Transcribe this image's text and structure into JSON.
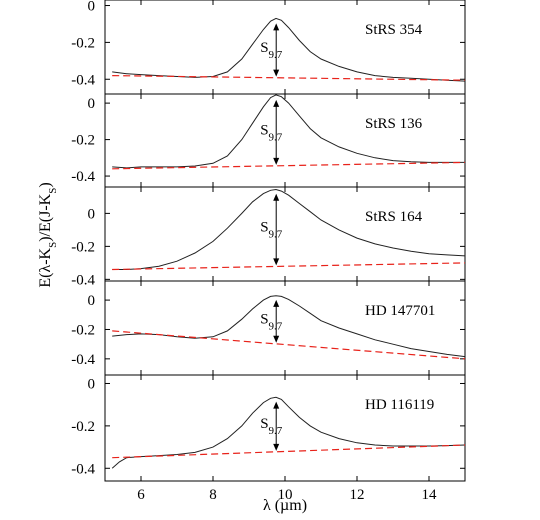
{
  "figure": {
    "ylabel_parts": [
      "E(λ-K",
      "S",
      ")/E(J-K",
      "S",
      ")"
    ],
    "xlabel": "λ (µm)",
    "annotation_main": "S",
    "annotation_sub": "9.7"
  },
  "chart_data": [
    {
      "type": "line",
      "label": "StRS 354",
      "xlim": [
        5,
        15
      ],
      "ylim": [
        -0.48,
        0.03
      ],
      "xticks": [
        6,
        8,
        10,
        12,
        14
      ],
      "yticks": [
        0,
        -0.2,
        -0.4
      ],
      "ytick_labels": [
        "0",
        "-0.2",
        "-0.4"
      ],
      "peak_x": 9.7,
      "series": [
        {
          "role": "observed",
          "style": "solid-black",
          "x": [
            5.2,
            5.6,
            6.0,
            6.5,
            7.0,
            7.5,
            8.0,
            8.4,
            8.8,
            9.1,
            9.4,
            9.6,
            9.75,
            9.9,
            10.1,
            10.4,
            10.7,
            11.0,
            11.5,
            12.0,
            12.5,
            13.0,
            13.5,
            14.0,
            14.5,
            15.0
          ],
          "y": [
            -0.36,
            -0.37,
            -0.375,
            -0.38,
            -0.385,
            -0.39,
            -0.385,
            -0.36,
            -0.29,
            -0.21,
            -0.13,
            -0.085,
            -0.07,
            -0.08,
            -0.12,
            -0.19,
            -0.25,
            -0.29,
            -0.33,
            -0.36,
            -0.38,
            -0.39,
            -0.395,
            -0.4,
            -0.405,
            -0.41
          ]
        },
        {
          "role": "continuum",
          "style": "dashed-red",
          "x": [
            5.2,
            15.0
          ],
          "y": [
            -0.38,
            -0.405
          ]
        }
      ]
    },
    {
      "type": "line",
      "label": "StRS 136",
      "xlim": [
        5,
        15
      ],
      "ylim": [
        -0.46,
        0.05
      ],
      "xticks": [
        6,
        8,
        10,
        12,
        14
      ],
      "yticks": [
        0,
        -0.2,
        -0.4
      ],
      "ytick_labels": [
        "0",
        "-0.2",
        "-0.4"
      ],
      "peak_x": 9.7,
      "series": [
        {
          "role": "observed",
          "style": "solid-black",
          "x": [
            5.2,
            5.6,
            6.0,
            6.5,
            7.0,
            7.5,
            8.0,
            8.4,
            8.8,
            9.1,
            9.4,
            9.6,
            9.75,
            9.9,
            10.1,
            10.4,
            10.7,
            11.0,
            11.5,
            12.0,
            12.5,
            13.0,
            13.5,
            14.0,
            14.5,
            15.0
          ],
          "y": [
            -0.35,
            -0.355,
            -0.35,
            -0.35,
            -0.35,
            -0.345,
            -0.33,
            -0.29,
            -0.2,
            -0.11,
            -0.02,
            0.03,
            0.045,
            0.035,
            0.0,
            -0.07,
            -0.14,
            -0.19,
            -0.24,
            -0.275,
            -0.3,
            -0.315,
            -0.322,
            -0.325,
            -0.325,
            -0.325
          ]
        },
        {
          "role": "continuum",
          "style": "dashed-red",
          "x": [
            5.2,
            15.0
          ],
          "y": [
            -0.36,
            -0.325
          ]
        }
      ]
    },
    {
      "type": "line",
      "label": "StRS 164",
      "xlim": [
        5,
        15
      ],
      "ylim": [
        -0.41,
        0.16
      ],
      "xticks": [
        6,
        8,
        10,
        12,
        14
      ],
      "yticks": [
        0,
        -0.2,
        -0.4
      ],
      "ytick_labels": [
        "0",
        "-0.2",
        "-0.4"
      ],
      "peak_x": 9.7,
      "series": [
        {
          "role": "observed",
          "style": "solid-black",
          "x": [
            5.2,
            5.6,
            6.0,
            6.5,
            7.0,
            7.5,
            8.0,
            8.4,
            8.8,
            9.1,
            9.4,
            9.6,
            9.75,
            9.9,
            10.1,
            10.4,
            10.7,
            11.0,
            11.5,
            12.0,
            12.5,
            13.0,
            13.5,
            14.0,
            14.5,
            15.0
          ],
          "y": [
            -0.34,
            -0.34,
            -0.335,
            -0.32,
            -0.29,
            -0.24,
            -0.17,
            -0.09,
            0.0,
            0.07,
            0.12,
            0.14,
            0.145,
            0.135,
            0.11,
            0.06,
            0.01,
            -0.04,
            -0.1,
            -0.15,
            -0.185,
            -0.21,
            -0.23,
            -0.245,
            -0.252,
            -0.258
          ]
        },
        {
          "role": "continuum",
          "style": "dashed-red",
          "x": [
            5.2,
            15.0
          ],
          "y": [
            -0.34,
            -0.3
          ]
        }
      ]
    },
    {
      "type": "line",
      "label": "HD 147701",
      "xlim": [
        5,
        15
      ],
      "ylim": [
        -0.51,
        0.13
      ],
      "xticks": [
        6,
        8,
        10,
        12,
        14
      ],
      "yticks": [
        0,
        -0.2,
        -0.4
      ],
      "ytick_labels": [
        "0",
        "-0.2",
        "-0.4"
      ],
      "peak_x": 9.7,
      "series": [
        {
          "role": "observed",
          "style": "solid-black",
          "x": [
            5.2,
            5.6,
            6.0,
            6.5,
            7.0,
            7.5,
            8.0,
            8.4,
            8.8,
            9.1,
            9.4,
            9.6,
            9.75,
            9.9,
            10.1,
            10.4,
            10.7,
            11.0,
            11.5,
            12.0,
            12.5,
            13.0,
            13.5,
            14.0,
            14.5,
            15.0
          ],
          "y": [
            -0.245,
            -0.235,
            -0.23,
            -0.235,
            -0.25,
            -0.26,
            -0.25,
            -0.21,
            -0.13,
            -0.06,
            0.0,
            0.025,
            0.03,
            0.025,
            0.005,
            -0.04,
            -0.09,
            -0.14,
            -0.19,
            -0.23,
            -0.27,
            -0.3,
            -0.33,
            -0.35,
            -0.37,
            -0.385
          ]
        },
        {
          "role": "continuum",
          "style": "dashed-red",
          "x": [
            5.2,
            15.0
          ],
          "y": [
            -0.21,
            -0.4
          ]
        }
      ]
    },
    {
      "type": "line",
      "label": "HD 116119",
      "xlim": [
        5,
        15
      ],
      "ylim": [
        -0.46,
        0.04
      ],
      "xticks": [
        6,
        8,
        10,
        12,
        14
      ],
      "yticks": [
        0,
        -0.2,
        -0.4
      ],
      "ytick_labels": [
        "0",
        "-0.2",
        "-0.4"
      ],
      "peak_x": 9.7,
      "series": [
        {
          "role": "observed",
          "style": "solid-black",
          "x": [
            5.2,
            5.4,
            5.6,
            6.0,
            6.5,
            7.0,
            7.5,
            8.0,
            8.4,
            8.8,
            9.1,
            9.4,
            9.6,
            9.75,
            9.9,
            10.1,
            10.4,
            10.7,
            11.0,
            11.5,
            12.0,
            12.5,
            13.0,
            13.5,
            14.0,
            14.5,
            15.0
          ],
          "y": [
            -0.4,
            -0.37,
            -0.35,
            -0.345,
            -0.34,
            -0.335,
            -0.325,
            -0.3,
            -0.26,
            -0.2,
            -0.14,
            -0.09,
            -0.07,
            -0.065,
            -0.075,
            -0.11,
            -0.16,
            -0.2,
            -0.23,
            -0.26,
            -0.28,
            -0.29,
            -0.295,
            -0.295,
            -0.295,
            -0.293,
            -0.29
          ]
        },
        {
          "role": "continuum",
          "style": "dashed-red",
          "x": [
            5.2,
            15.0
          ],
          "y": [
            -0.35,
            -0.29
          ]
        }
      ]
    }
  ]
}
